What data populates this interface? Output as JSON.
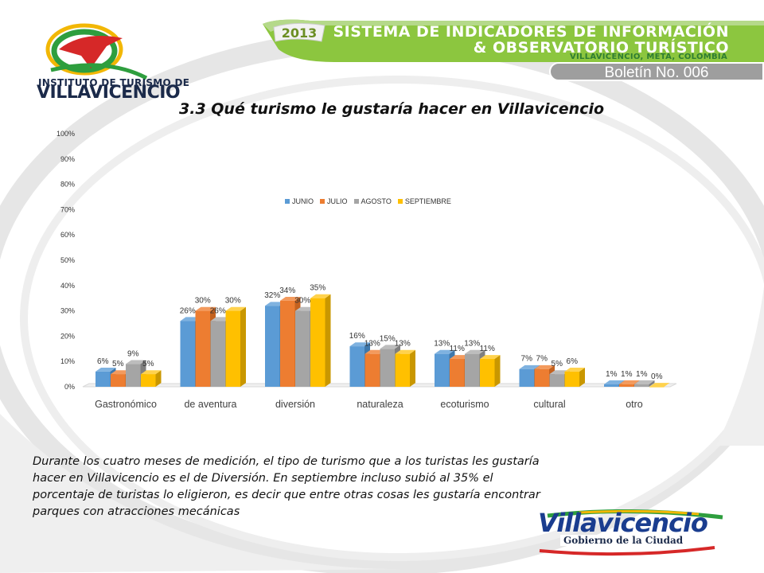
{
  "header": {
    "year": "2013",
    "title_line1": "SISTEMA DE INDICADORES DE INFORMACIÓN",
    "title_line2": "& OBSERVATORIO TURÍSTICO",
    "location": "VILLAVICENCIO, META, COLOMBIA",
    "bulletin": "Boletín No. 006"
  },
  "logo": {
    "line1": "INSTITUTO DE TURISMO DE",
    "line2": "VILLAVICENCIO"
  },
  "footer_logo": {
    "name": "Villavicencio",
    "subtitle": "Gobierno de la Ciudad"
  },
  "caption": "Durante los cuatro meses de medición, el tipo de turismo que a los turistas les gustaría hacer en Villavicencio es el de Diversión. En septiembre incluso subió al 35% el porcentaje de turistas lo eligieron, es decir que entre otras cosas les gustaría encontrar parques con atracciones mecánicas",
  "colors": {
    "green": "#8cc63f",
    "gray": "#9e9e9e",
    "junio": "#5b9bd5",
    "julio": "#ed7d31",
    "agosto": "#a5a5a5",
    "septiembre": "#ffc000"
  },
  "chart_data": {
    "type": "bar",
    "title": "3.3 Qué turismo le gustaría hacer en Villavicencio",
    "categories": [
      "Gastronómico",
      "de aventura",
      "diversión",
      "naturaleza",
      "ecoturismo",
      "cultural",
      "otro"
    ],
    "series": [
      {
        "name": "JUNIO",
        "values": [
          6,
          26,
          32,
          16,
          13,
          7,
          1
        ]
      },
      {
        "name": "JULIO",
        "values": [
          5,
          30,
          34,
          13,
          11,
          7,
          1
        ]
      },
      {
        "name": "AGOSTO",
        "values": [
          9,
          26,
          30,
          15,
          13,
          5,
          1
        ]
      },
      {
        "name": "SEPTIEMBRE",
        "values": [
          5,
          30,
          35,
          13,
          11,
          6,
          0
        ]
      }
    ],
    "ylim": [
      0,
      100
    ],
    "yticks": [
      "0%",
      "10%",
      "20%",
      "30%",
      "40%",
      "50%",
      "60%",
      "70%",
      "80%",
      "90%",
      "100%"
    ],
    "legend_position": "top-center",
    "grid": false
  }
}
